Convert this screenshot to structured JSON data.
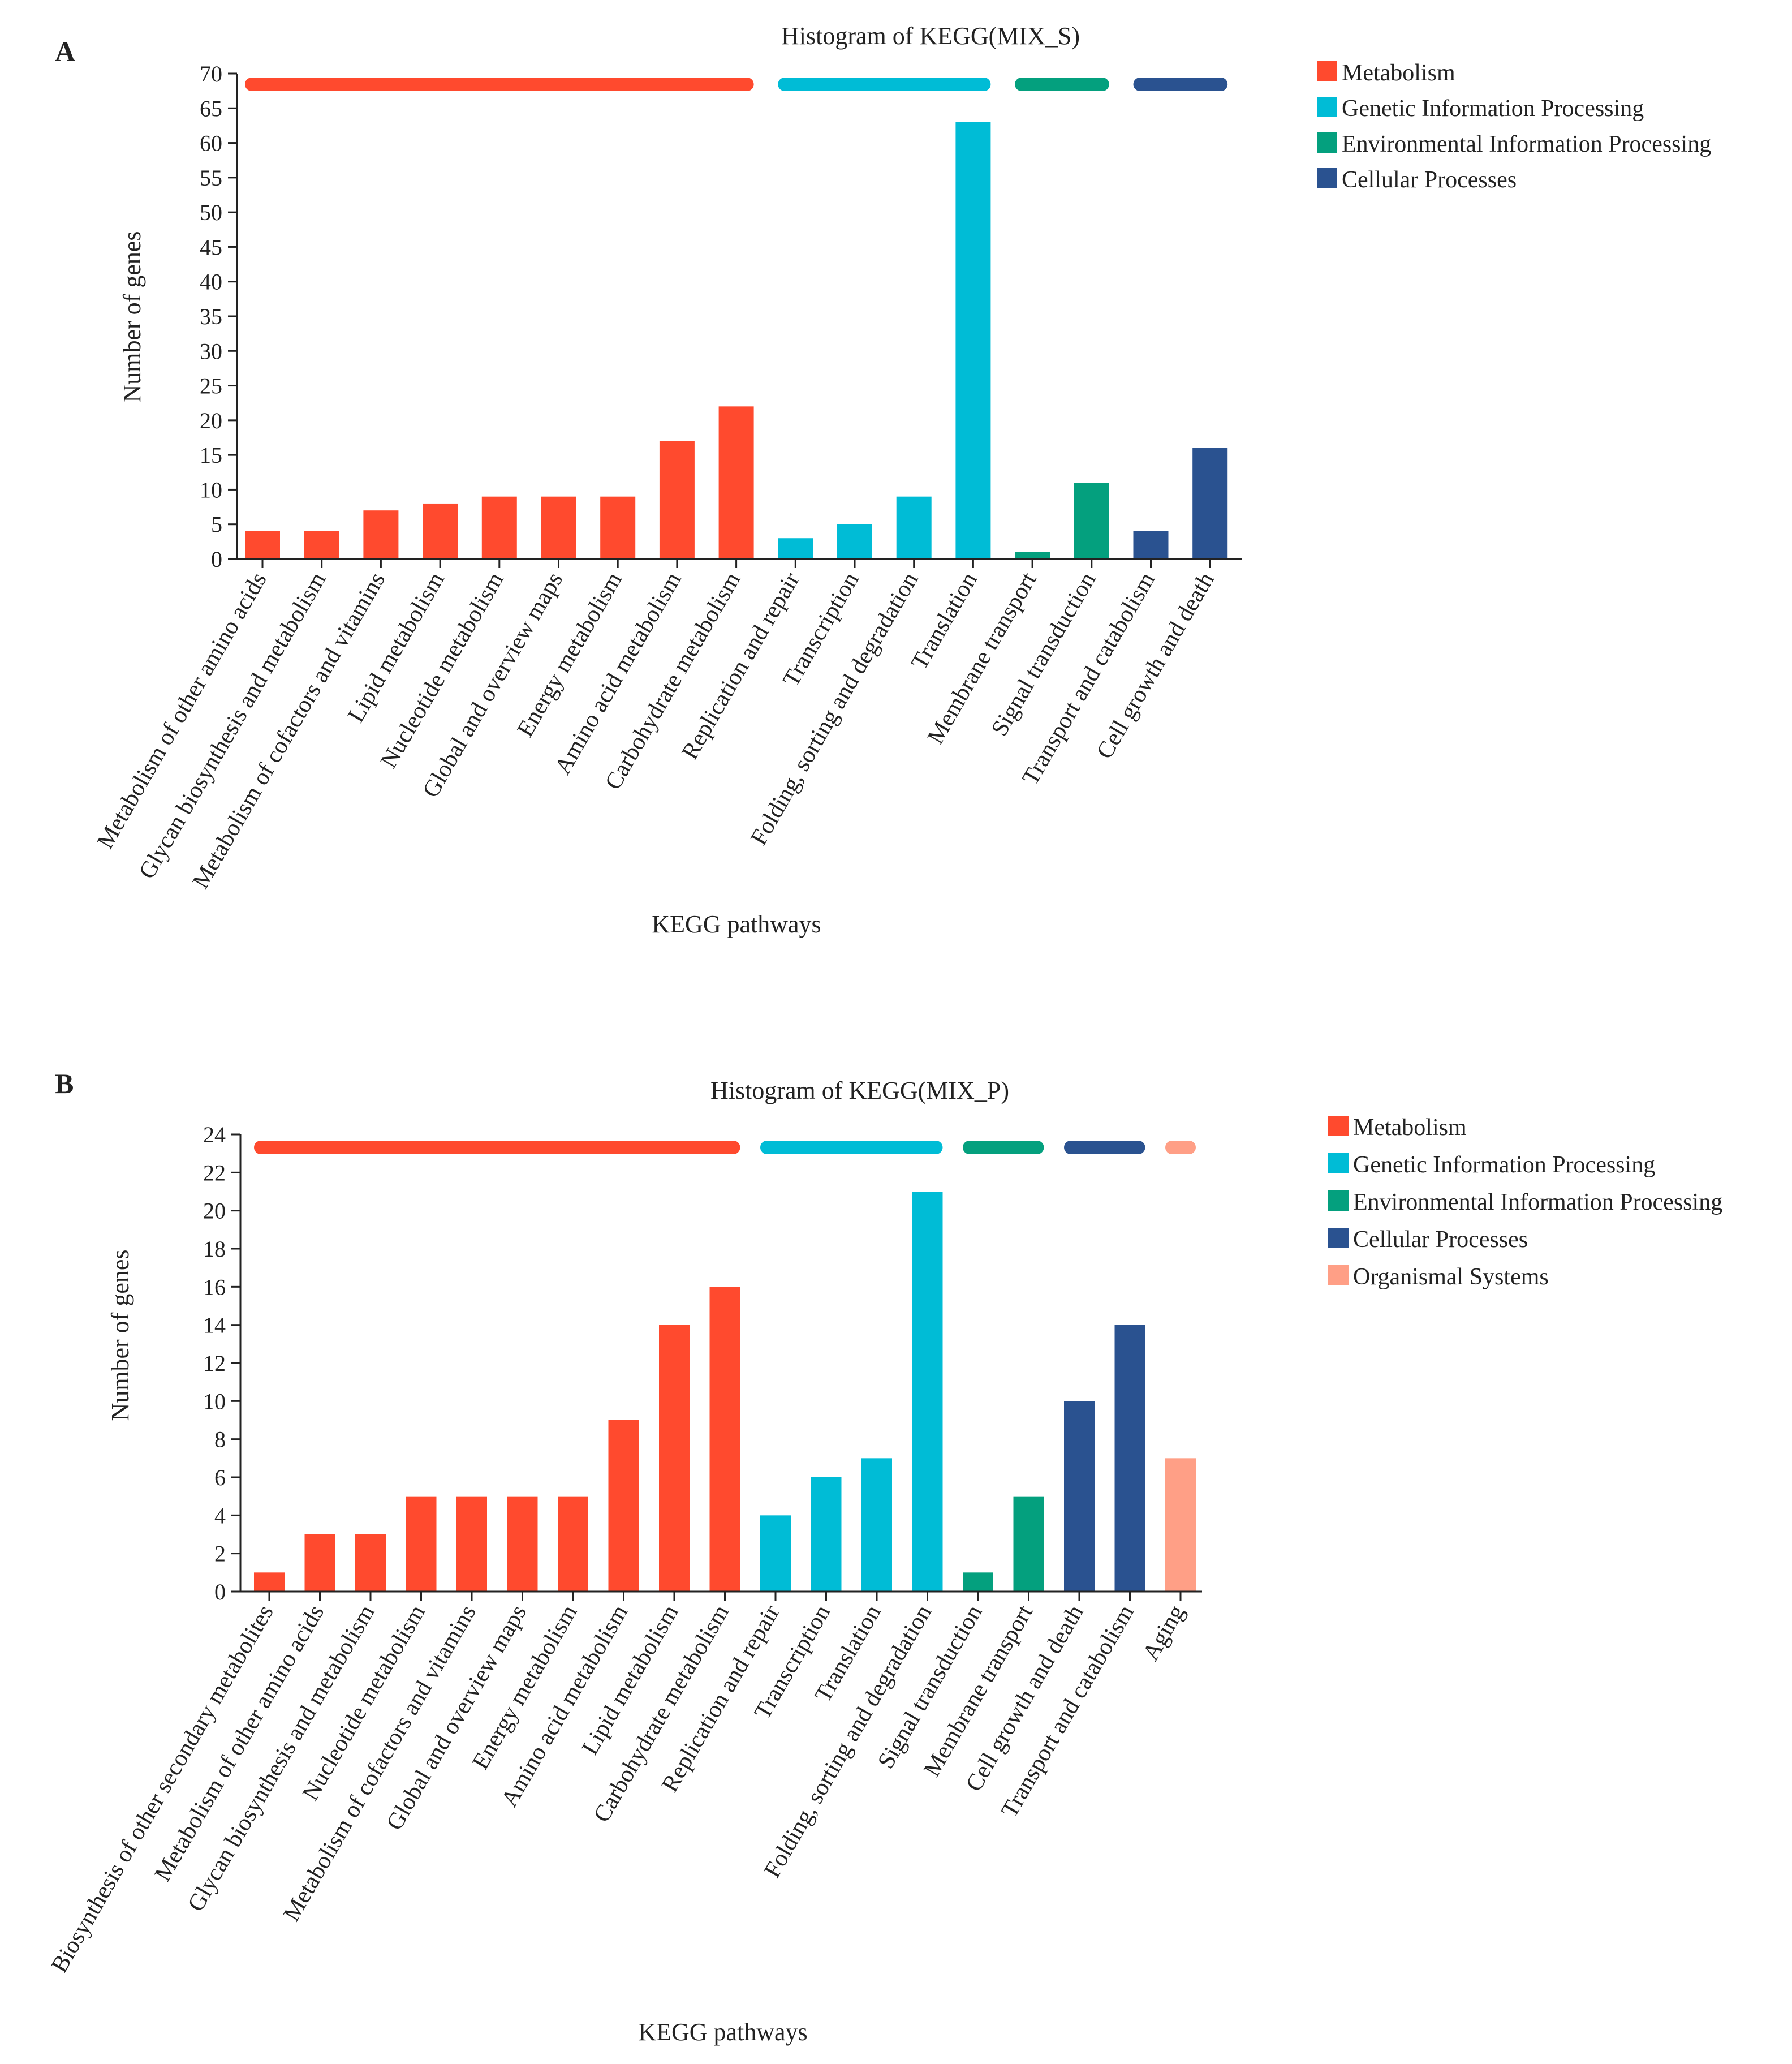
{
  "colors": {
    "Metabolism": "#FF4A2E",
    "Genetic Information Processing": "#00BCD6",
    "Environmental Information Processing": "#04A07E",
    "Cellular Processes": "#2A5290",
    "Organismal Systems": "#FF9F86"
  },
  "chart_data": [
    {
      "panel": "A",
      "type": "bar",
      "title": "Histogram of KEGG(MIX_S)",
      "xlabel": "KEGG pathways",
      "ylabel": "Number of genes",
      "ylim": [
        0,
        70
      ],
      "yticks": [
        0,
        5,
        10,
        15,
        20,
        25,
        30,
        35,
        40,
        45,
        50,
        55,
        60,
        65,
        70
      ],
      "categories": [
        "Metabolism of other amino acids",
        "Glycan biosynthesis and metabolism",
        "Metabolism of cofactors and vitamins",
        "Lipid metabolism",
        "Nucleotide metabolism",
        "Global and overview maps",
        "Energy metabolism",
        "Amino acid metabolism",
        "Carbohydrate metabolism",
        "Replication and repair",
        "Transcription",
        "Folding, sorting and degradation",
        "Translation",
        "Membrane transport",
        "Signal transduction",
        "Transport and catabolism",
        "Cell growth and death"
      ],
      "values": [
        4,
        4,
        7,
        8,
        9,
        9,
        9,
        17,
        22,
        3,
        5,
        9,
        63,
        1,
        11,
        4,
        16
      ],
      "groups": [
        "Metabolism",
        "Metabolism",
        "Metabolism",
        "Metabolism",
        "Metabolism",
        "Metabolism",
        "Metabolism",
        "Metabolism",
        "Metabolism",
        "Genetic Information Processing",
        "Genetic Information Processing",
        "Genetic Information Processing",
        "Genetic Information Processing",
        "Environmental Information Processing",
        "Environmental Information Processing",
        "Cellular Processes",
        "Cellular Processes"
      ],
      "legend": [
        "Metabolism",
        "Genetic Information Processing",
        "Environmental Information Processing",
        "Cellular Processes"
      ]
    },
    {
      "panel": "B",
      "type": "bar",
      "title": "Histogram of KEGG(MIX_P)",
      "xlabel": "KEGG pathways",
      "ylabel": "Number of genes",
      "ylim": [
        0,
        24
      ],
      "yticks": [
        0,
        2,
        4,
        6,
        8,
        10,
        12,
        14,
        16,
        18,
        20,
        22,
        24
      ],
      "categories": [
        "Biosynthesis of other secondary metabolites",
        "Metabolism of other amino acids",
        "Glycan biosynthesis and metabolism",
        "Nucleotide metabolism",
        "Metabolism of cofactors and vitamins",
        "Global and overview maps",
        "Energy metabolism",
        "Amino acid metabolism",
        "Lipid metabolism",
        "Carbohydrate metabolism",
        "Replication and repair",
        "Transcription",
        "Translation",
        "Folding, sorting and degradation",
        "Signal transduction",
        "Membrane transport",
        "Cell growth and death",
        "Transport and catabolism",
        "Aging"
      ],
      "values": [
        1,
        3,
        3,
        5,
        5,
        5,
        5,
        9,
        14,
        16,
        4,
        6,
        7,
        21,
        1,
        5,
        10,
        14,
        7
      ],
      "groups": [
        "Metabolism",
        "Metabolism",
        "Metabolism",
        "Metabolism",
        "Metabolism",
        "Metabolism",
        "Metabolism",
        "Metabolism",
        "Metabolism",
        "Metabolism",
        "Genetic Information Processing",
        "Genetic Information Processing",
        "Genetic Information Processing",
        "Genetic Information Processing",
        "Environmental Information Processing",
        "Environmental Information Processing",
        "Cellular Processes",
        "Cellular Processes",
        "Organismal Systems"
      ],
      "legend": [
        "Metabolism",
        "Genetic Information Processing",
        "Environmental Information Processing",
        "Cellular Processes",
        "Organismal Systems"
      ]
    }
  ]
}
